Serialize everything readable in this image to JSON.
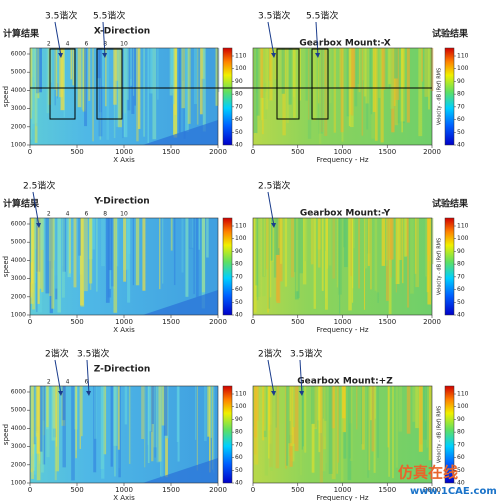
{
  "chart_data": [
    {
      "type": "heatmap",
      "title": "X-Direction",
      "side_label": "计算结果",
      "ylabel": "speed",
      "xlabel": "X Axis",
      "xlim": [
        0,
        2000
      ],
      "xticks": [
        0,
        500,
        1000,
        1500,
        2000
      ],
      "ylim": [
        1000,
        6000
      ],
      "yticks": [
        1000,
        2000,
        3000,
        4000,
        5000,
        6000
      ],
      "order_ticks": [
        2,
        4,
        6,
        8,
        10
      ],
      "colorbar_lim": [
        40,
        110
      ],
      "colorbar_ticks": [
        40,
        50,
        60,
        70,
        80,
        90,
        100,
        110
      ],
      "annotations": [
        "3.5谐次",
        "5.5谐次"
      ]
    },
    {
      "type": "heatmap",
      "title": "Gearbox Mount:-X",
      "side_label": "试验结果",
      "xlabel": "Frequency - Hz",
      "colorbar_label": "Velocity - dB (Ref) RMS",
      "xlim": [
        0,
        2000
      ],
      "xticks": [
        0,
        500,
        1000,
        1500,
        2000
      ],
      "colorbar_lim": [
        40,
        110
      ],
      "colorbar_ticks": [
        40,
        50,
        60,
        70,
        80,
        90,
        100,
        110
      ],
      "annotations": [
        "3.5谐次",
        "5.5谐次"
      ]
    },
    {
      "type": "heatmap",
      "title": "Y-Direction",
      "side_label": "计算结果",
      "ylabel": "speed",
      "xlabel": "X Axis",
      "xlim": [
        0,
        2000
      ],
      "xticks": [
        0,
        500,
        1000,
        1500,
        2000
      ],
      "ylim": [
        1000,
        6000
      ],
      "yticks": [
        1000,
        2000,
        3000,
        4000,
        5000,
        6000
      ],
      "order_ticks": [
        2,
        4,
        6,
        8,
        10
      ],
      "colorbar_lim": [
        40,
        110
      ],
      "colorbar_ticks": [
        40,
        50,
        60,
        70,
        80,
        90,
        100,
        110
      ],
      "annotations": [
        "2.5谐次"
      ]
    },
    {
      "type": "heatmap",
      "title": "Gearbox Mount:-Y",
      "side_label": "试验结果",
      "xlabel": "Frequency - Hz",
      "colorbar_label": "Velocity - dB (Ref) RMS",
      "xlim": [
        0,
        2000
      ],
      "xticks": [
        0,
        500,
        1000,
        1500,
        2000
      ],
      "colorbar_lim": [
        40,
        110
      ],
      "colorbar_ticks": [
        40,
        50,
        60,
        70,
        80,
        90,
        100,
        110
      ],
      "annotations": [
        "2.5谐次"
      ]
    },
    {
      "type": "heatmap",
      "title": "Z-Direction",
      "ylabel": "speed",
      "xlabel": "X Axis",
      "xlim": [
        0,
        2000
      ],
      "xticks": [
        0,
        500,
        1000,
        1500,
        2000
      ],
      "ylim": [
        1000,
        6000
      ],
      "yticks": [
        1000,
        2000,
        3000,
        4000,
        5000,
        6000
      ],
      "order_ticks": [
        2,
        4,
        6
      ],
      "colorbar_lim": [
        40,
        110
      ],
      "colorbar_ticks": [
        40,
        50,
        60,
        70,
        80,
        90,
        100,
        110
      ],
      "annotations": [
        "2谐次",
        "3.5谐次"
      ]
    },
    {
      "type": "heatmap",
      "title": "Gearbox Mount:+Z",
      "xlabel": "Frequency - Hz",
      "colorbar_label": "Velocity - dB (Ref) RMS",
      "xlim": [
        0,
        2000
      ],
      "xticks": [
        0,
        500,
        1000,
        1500,
        2000
      ],
      "colorbar_lim": [
        40,
        110
      ],
      "colorbar_ticks": [
        40,
        50,
        60,
        70,
        80,
        90,
        100,
        110
      ],
      "annotations": [
        "2谐次",
        "3.5谐次"
      ]
    }
  ],
  "watermark": {
    "title": "仿真在线",
    "url": "www.1CAE.com"
  }
}
